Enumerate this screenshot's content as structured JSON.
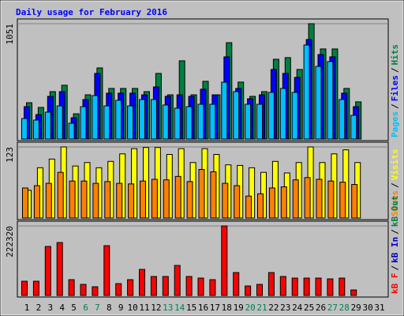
{
  "chart_data": [
    {
      "type": "bar",
      "title": "Daily usage for February 2016",
      "ylim": [
        0,
        1051
      ],
      "yticks": [
        1051
      ],
      "legend_separator": "/",
      "series": [
        {
          "name": "Pages",
          "color": "#00c0ff",
          "values": [
            187,
            173,
            245,
            302,
            144,
            295,
            396,
            302,
            353,
            302,
            360,
            360,
            310,
            281,
            295,
            317,
            317,
            518,
            432,
            317,
            317,
            425,
            461,
            425,
            857,
            662,
            706,
            360,
            216,
            null,
            null
          ]
        },
        {
          "name": "Files",
          "color": "#0000ff",
          "values": [
            295,
            223,
            389,
            432,
            194,
            360,
            598,
            418,
            418,
            418,
            403,
            475,
            389,
            403,
            389,
            454,
            403,
            749,
            461,
            367,
            403,
            634,
            598,
            562,
            907,
            770,
            749,
            418,
            295,
            null,
            null
          ]
        },
        {
          "name": "Hits",
          "color": "#008040",
          "values": [
            331,
            288,
            432,
            490,
            230,
            403,
            648,
            461,
            461,
            461,
            432,
            598,
            403,
            713,
            403,
            526,
            403,
            878,
            519,
            389,
            432,
            727,
            742,
            634,
            1051,
            821,
            821,
            461,
            339,
            null,
            null
          ]
        }
      ]
    },
    {
      "type": "bar",
      "ylim": [
        0,
        123
      ],
      "yticks": [
        123
      ],
      "legend_separator": "/",
      "series": [
        {
          "name": "Sites",
          "color": "#ff8000",
          "values": [
            52,
            56,
            60,
            79,
            64,
            64,
            60,
            63,
            60,
            59,
            64,
            67,
            66,
            72,
            63,
            84,
            80,
            60,
            56,
            38,
            42,
            52,
            54,
            66,
            70,
            67,
            64,
            62,
            58,
            null,
            null
          ]
        },
        {
          "name": "Visits",
          "color": "#ffff00",
          "values": [
            48,
            87,
            102,
            123,
            90,
            96,
            87,
            98,
            111,
            120,
            122,
            122,
            110,
            120,
            96,
            120,
            110,
            92,
            91,
            87,
            79,
            98,
            78,
            96,
            123,
            96,
            111,
            118,
            96,
            null,
            null
          ]
        }
      ]
    },
    {
      "type": "bar",
      "ylim": [
        0,
        222320
      ],
      "yticks": [
        222320
      ],
      "legend_separator": "/",
      "categories": [
        "1",
        "2",
        "3",
        "4",
        "5",
        "6",
        "7",
        "8",
        "9",
        "10",
        "11",
        "12",
        "13",
        "14",
        "15",
        "16",
        "17",
        "18",
        "19",
        "20",
        "21",
        "22",
        "23",
        "24",
        "25",
        "26",
        "27",
        "28",
        "29",
        "30",
        "31"
      ],
      "category_colors": [
        "#000000",
        "#000000",
        "#000000",
        "#000000",
        "#000000",
        "#00805c",
        "#00805c",
        "#000000",
        "#000000",
        "#000000",
        "#000000",
        "#000000",
        "#00805c",
        "#00805c",
        "#000000",
        "#000000",
        "#000000",
        "#000000",
        "#000000",
        "#00805c",
        "#00805c",
        "#000000",
        "#000000",
        "#000000",
        "#000000",
        "#000000",
        "#00805c",
        "#00805c",
        "#000000",
        "#000000",
        "#000000"
      ],
      "series": [
        {
          "name": "kB F",
          "color": "#ff0000",
          "values": [
            45476,
            45476,
            156637,
            169270,
            50527,
            35369,
            27790,
            159163,
            37896,
            50527,
            83370,
            60633,
            60633,
            96004,
            60633,
            55581,
            50527,
            222320,
            73266,
            30317,
            35369,
            73266,
            60633,
            55581,
            55581,
            55581,
            53000,
            55581,
            17685,
            null,
            null
          ]
        },
        {
          "name": "kB In",
          "color": "#0000c0",
          "values": [
            null,
            null,
            null,
            null,
            null,
            null,
            null,
            null,
            null,
            null,
            null,
            null,
            null,
            null,
            null,
            null,
            null,
            null,
            null,
            null,
            null,
            null,
            null,
            null,
            null,
            null,
            null,
            null,
            null,
            null,
            null
          ]
        },
        {
          "name": "kB Out",
          "color": "#008040",
          "values": [
            null,
            null,
            null,
            null,
            null,
            null,
            null,
            null,
            null,
            null,
            null,
            null,
            null,
            null,
            null,
            null,
            null,
            null,
            null,
            null,
            null,
            null,
            null,
            null,
            null,
            null,
            null,
            null,
            null,
            null,
            null
          ]
        }
      ]
    }
  ]
}
